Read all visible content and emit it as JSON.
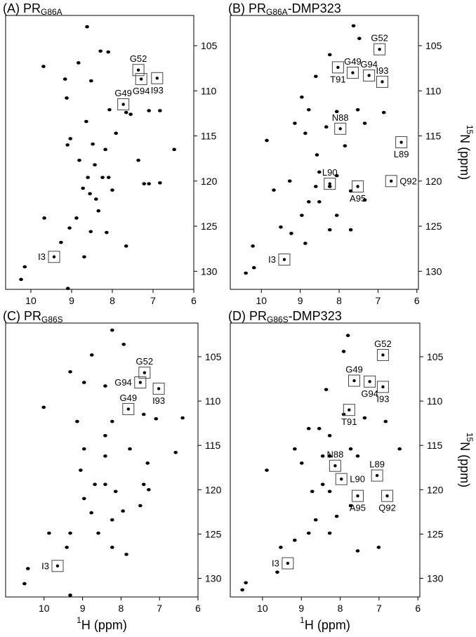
{
  "chart_data": [
    {
      "type": "scatter",
      "title": [
        {
          "text": "(A) PR"
        },
        {
          "text": "G86A",
          "sub": true
        }
      ],
      "xlim": [
        10.62,
        6
      ],
      "xticks": [
        10,
        9,
        8,
        7,
        6
      ],
      "ylim": [
        132.0,
        101.65
      ],
      "yticks": [
        105,
        110,
        115,
        120,
        125,
        130
      ],
      "color": "#000000",
      "x": [
        8.62,
        8.29,
        8.1,
        9.69,
        8.83,
        8.52,
        9.16,
        7.55,
        7.1,
        6.83,
        7.66,
        9.03,
        9.1,
        8.48,
        8.17,
        7.91,
        7.36,
        6.48,
        8.43,
        8.6,
        8.24,
        8.09,
        8.72,
        8.55,
        8.4,
        8.34,
        8.88,
        9.05,
        8.53,
        8.14,
        9.67,
        9.26,
        10.15,
        10.24,
        9.09,
        8.69,
        7.66,
        7.22,
        7.1,
        8.0,
        8.81,
        8.07,
        8.64,
        9.12,
        6.83
      ],
      "values": [
        102.9,
        105.6,
        105.7,
        107.3,
        106.9,
        108.9,
        108.7,
        112.6,
        112.2,
        112.2,
        112.4,
        115.3,
        116.0,
        115.9,
        116.5,
        114.7,
        117.7,
        116.5,
        118.2,
        119.6,
        119.6,
        119.6,
        120.8,
        121.4,
        122.0,
        123.3,
        124.1,
        125.2,
        125.6,
        125.7,
        124.1,
        126.8,
        129.5,
        130.9,
        131.9,
        128.4,
        127.2,
        120.3,
        120.3,
        121.0,
        117.7,
        112.1,
        113.4,
        110.8,
        120.2
      ],
      "annotations": [
        {
          "label": "G52",
          "x": 7.36,
          "y": 107.7,
          "position": "top"
        },
        {
          "label": "G94",
          "x": 7.29,
          "y": 108.7,
          "position": "bottom"
        },
        {
          "label": "I93",
          "x": 6.9,
          "y": 108.6,
          "position": "bottom"
        },
        {
          "label": "G49",
          "x": 7.73,
          "y": 111.5,
          "position": "top"
        },
        {
          "label": "I3",
          "x": 9.43,
          "y": 128.4,
          "position": "left"
        }
      ]
    },
    {
      "type": "scatter",
      "title": [
        {
          "text": "(B) PR"
        },
        {
          "text": "G86A",
          "sub": true
        },
        {
          "text": "-DMP323"
        }
      ],
      "ylabel": [
        {
          "text": "15",
          "sup": true
        },
        {
          "text": "N (ppm)"
        }
      ],
      "xlim": [
        10.8,
        5.96
      ],
      "xticks": [
        10,
        9,
        8,
        7,
        6
      ],
      "ylim": [
        132.0,
        101.65
      ],
      "yticks": [
        105,
        110,
        115,
        120,
        125,
        130
      ],
      "color": "#000000",
      "x": [
        7.63,
        7.48,
        8.24,
        8.6,
        8.96,
        8.78,
        7.52,
        6.85,
        8.06,
        9.14,
        8.87,
        7.34,
        9.86,
        8.33,
        8.51,
        8.06,
        8.24,
        7.7,
        8.78,
        8.51,
        8.96,
        8.06,
        7.34,
        8.24,
        7.7,
        9.23,
        8.87,
        9.5,
        10.22,
        10.4,
        10.19,
        9.68,
        8.57,
        7.85,
        9.27,
        8.6
      ],
      "values": [
        102.8,
        104.2,
        106.0,
        108.4,
        110.7,
        112.1,
        112.1,
        112.4,
        112.3,
        113.6,
        114.7,
        113.6,
        115.5,
        114.0,
        119.0,
        119.4,
        120.6,
        121.1,
        122.3,
        122.3,
        123.8,
        123.8,
        122.1,
        125.4,
        125.4,
        125.8,
        126.9,
        125.1,
        127.2,
        130.2,
        129.6,
        121.0,
        117.1,
        116.1,
        120.0,
        120.6
      ],
      "annotations": [
        {
          "label": "G52",
          "x": 6.96,
          "y": 105.4,
          "position": "top"
        },
        {
          "label": "T91",
          "x": 8.03,
          "y": 107.4,
          "position": "bottom"
        },
        {
          "label": "G49",
          "x": 7.65,
          "y": 108.0,
          "position": "top"
        },
        {
          "label": "G94",
          "x": 7.23,
          "y": 108.3,
          "position": "top"
        },
        {
          "label": "I93",
          "x": 6.89,
          "y": 109.0,
          "position": "top"
        },
        {
          "label": "N88",
          "x": 7.97,
          "y": 114.2,
          "position": "top"
        },
        {
          "label": "L89",
          "x": 6.4,
          "y": 115.7,
          "position": "bottom"
        },
        {
          "label": "L90",
          "x": 8.24,
          "y": 120.3,
          "position": "top"
        },
        {
          "label": "A95",
          "x": 7.52,
          "y": 120.6,
          "position": "bottom"
        },
        {
          "label": "Q92",
          "x": 6.66,
          "y": 120.0,
          "position": "right"
        },
        {
          "label": "I3",
          "x": 9.41,
          "y": 128.7,
          "position": "left"
        }
      ]
    },
    {
      "type": "scatter",
      "title": [
        {
          "text": "(C) PR"
        },
        {
          "text": "G86S",
          "sub": true
        }
      ],
      "xlabel": [
        {
          "text": "1",
          "sup": true
        },
        {
          "text": "H (ppm)"
        }
      ],
      "xlim": [
        11.0,
        6.0
      ],
      "xticks": [
        10,
        9,
        8,
        7,
        6
      ],
      "ylim": [
        132.1,
        101.2
      ],
      "yticks": [
        105,
        110,
        115,
        120,
        125,
        130
      ],
      "color": "#000000",
      "x": [
        8.23,
        8.76,
        7.93,
        9.32,
        8.96,
        8.41,
        10.01,
        9.14,
        8.23,
        7.41,
        7.09,
        6.4,
        8.96,
        8.41,
        7.77,
        7.31,
        6.58,
        8.68,
        8.41,
        8.14,
        8.96,
        8.77,
        8.23,
        8.59,
        9.32,
        9.87,
        9.41,
        10.42,
        10.51,
        9.32,
        7.41,
        7.28,
        7.5,
        8.23,
        7.86,
        9.05,
        8.41,
        7.95
      ],
      "values": [
        102.0,
        104.8,
        103.6,
        106.7,
        107.9,
        108.3,
        110.7,
        112.3,
        112.3,
        111.5,
        112.0,
        111.9,
        115.4,
        116.2,
        115.4,
        117.0,
        115.8,
        119.4,
        119.4,
        120.2,
        121.0,
        122.6,
        123.4,
        124.9,
        124.9,
        124.9,
        126.5,
        128.9,
        130.6,
        131.9,
        119.4,
        120.0,
        121.8,
        126.5,
        127.3,
        117.8,
        113.9,
        122.4
      ],
      "annotations": [
        {
          "label": "G52",
          "x": 7.39,
          "y": 106.8,
          "position": "top"
        },
        {
          "label": "G94",
          "x": 7.5,
          "y": 107.9,
          "position": "left"
        },
        {
          "label": "I93",
          "x": 7.02,
          "y": 108.6,
          "position": "bottom"
        },
        {
          "label": "G49",
          "x": 7.81,
          "y": 110.9,
          "position": "top"
        },
        {
          "label": "I3",
          "x": 9.65,
          "y": 128.6,
          "position": "left"
        }
      ]
    },
    {
      "type": "scatter",
      "title": [
        {
          "text": "(D) PR"
        },
        {
          "text": "G86S",
          "sub": true
        },
        {
          "text": "-DMP323"
        }
      ],
      "xlabel": [
        {
          "text": "1",
          "sup": true
        },
        {
          "text": "H (ppm)"
        }
      ],
      "ylabel": [
        {
          "text": "15",
          "sup": true
        },
        {
          "text": "N (ppm)"
        }
      ],
      "xlim": [
        10.83,
        5.95
      ],
      "xticks": [
        10,
        9,
        8,
        7,
        6
      ],
      "ylim": [
        132.1,
        101.2
      ],
      "yticks": [
        105,
        110,
        115,
        120,
        125,
        130
      ],
      "color": "#000000",
      "x": [
        7.8,
        7.91,
        8.36,
        7.91,
        7.37,
        6.83,
        8.81,
        8.54,
        8.27,
        9.17,
        8.99,
        8.27,
        7.73,
        8.45,
        8.27,
        8.72,
        7.73,
        8.09,
        8.63,
        8.27,
        8.81,
        9.17,
        9.53,
        9.62,
        10.43,
        10.52,
        7.01,
        7.55,
        9.89,
        8.45,
        6.47,
        7.55
      ],
      "values": [
        102.6,
        104.4,
        108.7,
        111.5,
        111.9,
        112.3,
        113.1,
        113.1,
        113.9,
        115.4,
        117.0,
        116.2,
        115.4,
        119.4,
        120.2,
        120.2,
        121.8,
        123.0,
        123.4,
        124.9,
        124.9,
        125.7,
        126.5,
        129.3,
        130.5,
        131.3,
        126.5,
        126.9,
        117.8,
        116.2,
        115.4,
        116.2
      ],
      "annotations": [
        {
          "label": "G52",
          "x": 6.9,
          "y": 104.8,
          "position": "top"
        },
        {
          "label": "G49",
          "x": 7.64,
          "y": 107.7,
          "position": "top"
        },
        {
          "label": "G94",
          "x": 7.24,
          "y": 107.8,
          "position": "bottom"
        },
        {
          "label": "I93",
          "x": 6.9,
          "y": 108.4,
          "position": "bottom"
        },
        {
          "label": "T91",
          "x": 7.77,
          "y": 111.0,
          "position": "bottom"
        },
        {
          "label": "N88",
          "x": 8.13,
          "y": 117.3,
          "position": "top"
        },
        {
          "label": "L89",
          "x": 7.05,
          "y": 118.4,
          "position": "top"
        },
        {
          "label": "L90",
          "x": 7.97,
          "y": 118.8,
          "position": "right"
        },
        {
          "label": "A95",
          "x": 7.55,
          "y": 120.7,
          "position": "bottom"
        },
        {
          "label": "Q92",
          "x": 6.79,
          "y": 120.7,
          "position": "bottom"
        },
        {
          "label": "I3",
          "x": 9.35,
          "y": 128.3,
          "position": "left"
        }
      ]
    }
  ]
}
